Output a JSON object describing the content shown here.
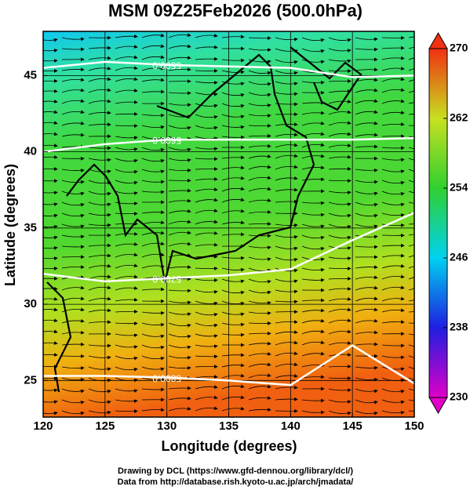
{
  "chart_data": {
    "type": "contour",
    "title": "MSM 09Z25Feb2026 (500.0hPa)",
    "x_label": "Longitude (degrees)",
    "y_label": "Latitude  (degrees)",
    "xlim": [
      120,
      150
    ],
    "ylim": [
      22.6,
      47.9
    ],
    "xticks": [
      120,
      125,
      130,
      135,
      140,
      145,
      150
    ],
    "yticks": [
      25,
      30,
      35,
      40,
      45
    ],
    "grid": true,
    "contours": [
      {
        "label": "5500.0",
        "lons": [
          120,
          125,
          130,
          135,
          140,
          145,
          150
        ],
        "lats": [
          45.5,
          45.9,
          45.7,
          45.6,
          45.5,
          44.9,
          45.0
        ]
      },
      {
        "label": "5600.0",
        "lons": [
          120,
          125,
          130,
          135,
          140,
          145,
          150
        ],
        "lats": [
          40.0,
          40.5,
          40.8,
          40.8,
          40.8,
          40.8,
          40.9
        ]
      },
      {
        "label": "5700.0",
        "lons": [
          120,
          125,
          130,
          135,
          140,
          145,
          150
        ],
        "lats": [
          32.0,
          31.5,
          31.7,
          31.9,
          32.3,
          34.2,
          36.0
        ]
      },
      {
        "label": "5800.0",
        "lons": [
          120,
          125,
          130,
          135,
          140,
          145,
          150
        ],
        "lats": [
          25.3,
          25.3,
          25.2,
          25.0,
          24.7,
          27.3,
          24.8
        ]
      }
    ],
    "colorbar": {
      "lim": [
        230,
        270
      ],
      "ticks": [
        230,
        238,
        246,
        254,
        262,
        270
      ],
      "colors": [
        "#e000c8",
        "#1e1ee0",
        "#00d2f0",
        "#30d030",
        "#c8e020",
        "#f03010"
      ]
    },
    "credits": [
      "Drawing by DCL (https://www.gfd-dennou.org/library/dcl/)",
      "Data from http://database.rish.kyoto-u.ac.jp/arch/jmadata/"
    ]
  }
}
